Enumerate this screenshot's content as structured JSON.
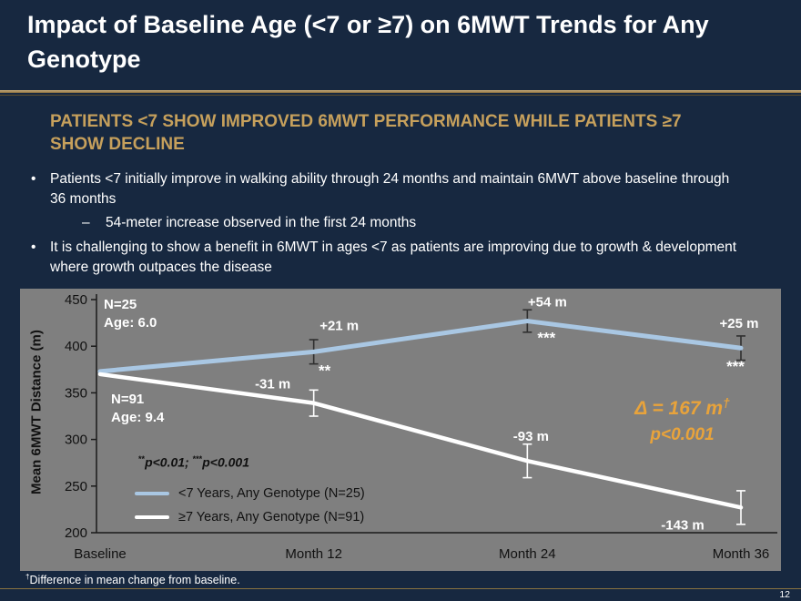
{
  "slide": {
    "title": "Impact of Baseline Age (<7 or ≥7) on 6MWT Trends for Any Genotype",
    "page_number": "12",
    "footnote_symbol": "†",
    "footnote_text": "Difference in mean change from baseline.",
    "colors": {
      "background": "#172840",
      "accent_gold": "#C6A05C",
      "divider_gold": "#B08F55"
    }
  },
  "content": {
    "heading": "PATIENTS <7 SHOW IMPROVED 6MWT PERFORMANCE WHILE PATIENTS ≥7 SHOW DECLINE",
    "bullets": [
      {
        "marker": "•",
        "level": 1,
        "text": "Patients <7 initially improve in walking ability through 24 months and maintain 6MWT above baseline through 36 months"
      },
      {
        "marker": "–",
        "level": 2,
        "text": "54-meter increase observed in the first 24 months"
      },
      {
        "marker": "•",
        "level": 1,
        "text": "It is challenging to show a benefit in 6MWT in ages <7 as patients are improving due to growth & development where growth outpaces the disease"
      }
    ]
  },
  "chart_data": {
    "type": "line",
    "ylabel": "Mean 6MWT Distance (m)",
    "ylim": [
      200,
      450
    ],
    "yticks": [
      200,
      250,
      300,
      350,
      400,
      450
    ],
    "categories": [
      "Baseline",
      "Month 12",
      "Month 24",
      "Month 36"
    ],
    "background": "#7F7F7F",
    "grid": false,
    "legend_position": "lower-left",
    "series": [
      {
        "name": "<7 Years, Any Genotype (N=25)",
        "color": "#A9C7E3",
        "stroke_width": 5,
        "values": [
          373,
          394,
          427,
          398
        ],
        "errors": [
          0,
          13,
          12,
          13
        ],
        "error_color": "#2F2F2F",
        "point_labels": [
          "",
          "+21 m",
          "+54 m",
          "+25 m"
        ],
        "significance": [
          "",
          "**",
          "***",
          "***"
        ],
        "label_dx": [
          0,
          28,
          22,
          -2
        ],
        "label_dy": [
          0,
          -24,
          -16,
          -22
        ],
        "sig_dx": [
          0,
          12,
          21,
          -6
        ],
        "sig_dy": [
          0,
          26,
          24,
          26
        ]
      },
      {
        "name": "≥7 Years, Any Genotype (N=91)",
        "color": "#FFFFFF",
        "stroke_width": 4.5,
        "values": [
          370,
          339,
          277,
          227
        ],
        "errors": [
          0,
          14,
          18,
          18
        ],
        "error_color": "#FFFFFF",
        "point_labels": [
          "",
          "-31 m",
          "-93 m",
          "-143 m"
        ],
        "significance": [
          "",
          "",
          "",
          ""
        ],
        "label_dx": [
          0,
          -45,
          4,
          -64
        ],
        "label_dy": [
          0,
          -16,
          -22,
          24
        ],
        "sig_dx": [
          0,
          0,
          0,
          0
        ],
        "sig_dy": [
          0,
          0,
          0,
          0
        ]
      }
    ],
    "annotations": {
      "group1": {
        "line1": "N=25",
        "line2": "Age: 6.0"
      },
      "group2": {
        "line1": "N=91",
        "line2": "Age: 9.4"
      },
      "sig_note": {
        "sig1": "**",
        "text1": "p<0.01; ",
        "sig2": "***",
        "text2": "p<0.001"
      },
      "delta": {
        "text": "Δ = 167 m",
        "sup": "†",
        "p_value": "p<0.001",
        "color": "#E8A33B"
      }
    }
  }
}
